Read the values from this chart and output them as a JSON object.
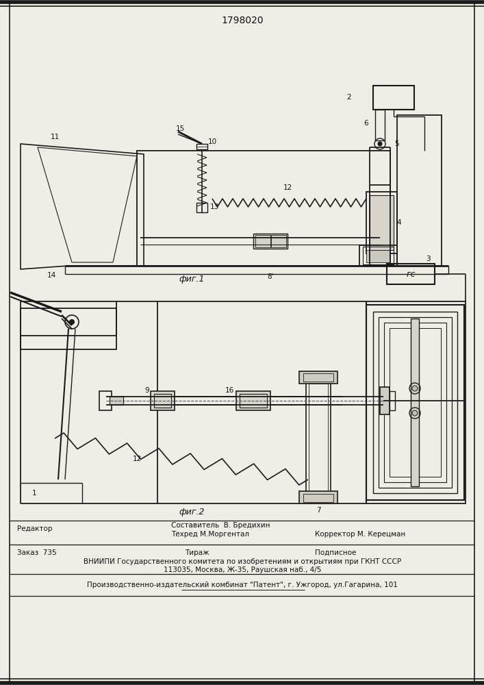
{
  "patent_number": "1798020",
  "bg_color": "#f0ede6",
  "fig1_label": "фиг.1",
  "fig2_label": "фиг.2",
  "footer_line1_left": "Редактор",
  "footer_line1_mid1": "Составитель  В. Бредихин",
  "footer_line1_mid2": "Техред М.Моргентал",
  "footer_line1_right": "Корректор М. Керецман",
  "footer_line2_left": "Заказ  735",
  "footer_line2_mid": "Тираж",
  "footer_line2_right": "Подписное",
  "footer_line3": "ВНИИПИ Государственного комитета по изобретениям и открытиям при ГКНТ СССР",
  "footer_line4": "113035, Москва, Ж-35, Раушская наб., 4/5",
  "footer_line5": "Производственно-издательский комбинат \"Патент\", г. Ужгород, ул.Гагарина, 101",
  "line_color": "#1a1a1a",
  "text_color": "#111111"
}
